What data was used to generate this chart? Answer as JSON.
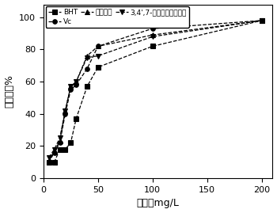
{
  "title": "",
  "xlabel": "浓度，mg/L",
  "ylabel": "清除率，%",
  "xlim": [
    0,
    210
  ],
  "ylim": [
    0,
    108
  ],
  "xticks": [
    0,
    50,
    100,
    150,
    200
  ],
  "yticks": [
    0,
    20,
    40,
    60,
    80,
    100
  ],
  "series": [
    {
      "label": "BHT",
      "x": [
        5,
        10,
        15,
        20,
        25,
        30,
        40,
        50,
        100,
        200
      ],
      "y": [
        10,
        10,
        18,
        18,
        22,
        37,
        57,
        69,
        82,
        98
      ],
      "marker": "s",
      "linestyle": "--",
      "color": "#000000",
      "mfc": "#000000"
    },
    {
      "label": "Vc",
      "x": [
        5,
        10,
        15,
        20,
        25,
        30,
        40,
        50,
        100,
        200
      ],
      "y": [
        10,
        16,
        22,
        40,
        55,
        58,
        68,
        82,
        93,
        98
      ],
      "marker": "o",
      "linestyle": "--",
      "color": "#000000",
      "mfc": "#000000"
    },
    {
      "label": "黄颏木素",
      "x": [
        5,
        10,
        15,
        20,
        25,
        30,
        40,
        50,
        100,
        200
      ],
      "y": [
        11,
        17,
        23,
        42,
        57,
        60,
        76,
        82,
        89,
        98
      ],
      "marker": "^",
      "linestyle": "--",
      "color": "#000000",
      "mfc": "#000000"
    },
    {
      "label": "3,4',7-三羟基二氮黄酮醇",
      "x": [
        5,
        10,
        15,
        20,
        25,
        30,
        40,
        50,
        100,
        200
      ],
      "y": [
        13,
        18,
        25,
        42,
        57,
        60,
        75,
        76,
        88,
        98
      ],
      "marker": "v",
      "linestyle": "--",
      "color": "#000000",
      "mfc": "#000000"
    }
  ],
  "legend_ncol_row1": 3,
  "background_color": "#ffffff",
  "font_size": 8,
  "label_font_size": 9
}
